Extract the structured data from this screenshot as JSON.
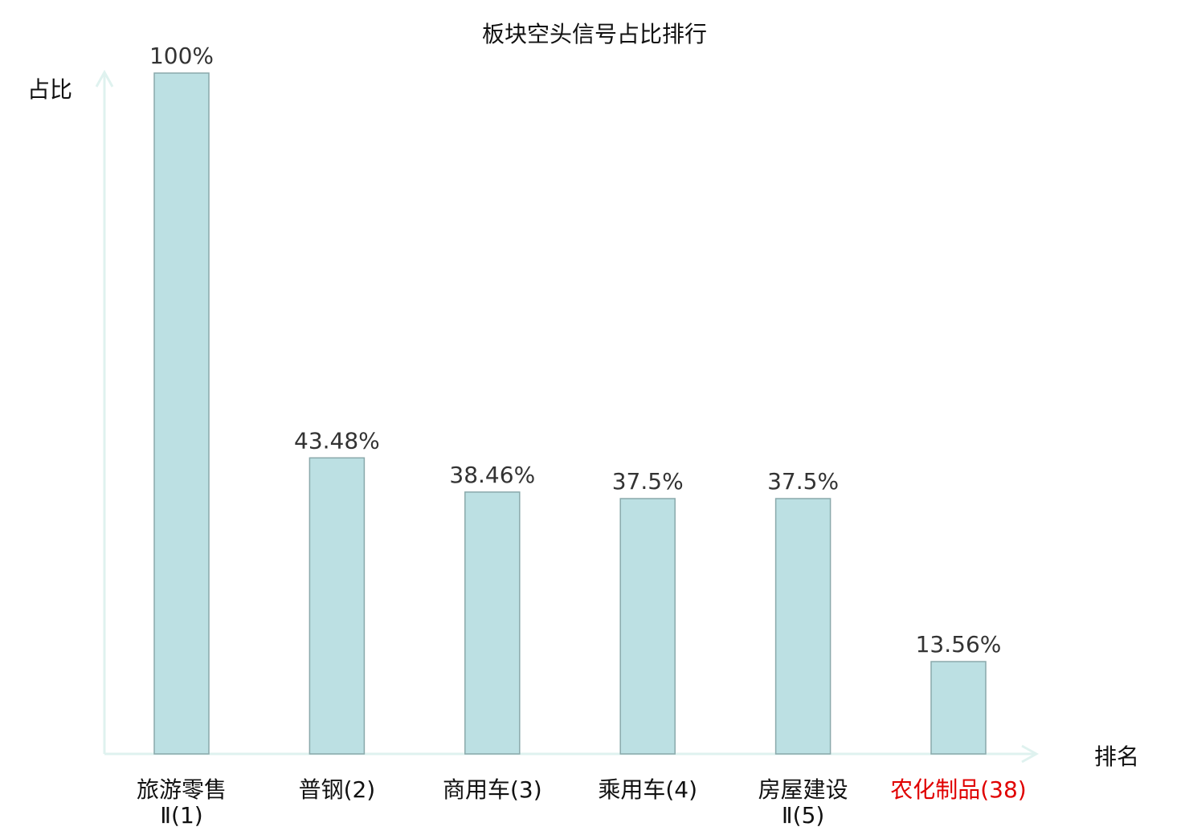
{
  "chart_data": {
    "type": "bar",
    "title": "板块空头信号占比排行",
    "ylabel": "占比",
    "xlabel": "排名",
    "ylim": [
      0,
      100
    ],
    "categories": [
      {
        "lines": [
          "旅游零售",
          "Ⅱ(1)"
        ],
        "highlight": false
      },
      {
        "lines": [
          "普钢(2)"
        ],
        "highlight": false
      },
      {
        "lines": [
          "商用车(3)"
        ],
        "highlight": false
      },
      {
        "lines": [
          "乘用车(4)"
        ],
        "highlight": false
      },
      {
        "lines": [
          "房屋建设",
          "Ⅱ(5)"
        ],
        "highlight": false
      },
      {
        "lines": [
          "农化制品(38)"
        ],
        "highlight": true
      }
    ],
    "values": [
      100,
      43.48,
      38.46,
      37.5,
      37.5,
      13.56
    ],
    "value_labels": [
      "100%",
      "43.48%",
      "38.46%",
      "37.5%",
      "37.5%",
      "13.56%"
    ],
    "colors": {
      "bar": "#bce0e3",
      "bar_stroke": "#8aa9ab",
      "axis": "#dff2ef",
      "highlight": "#e00000",
      "text": "#333333"
    }
  }
}
